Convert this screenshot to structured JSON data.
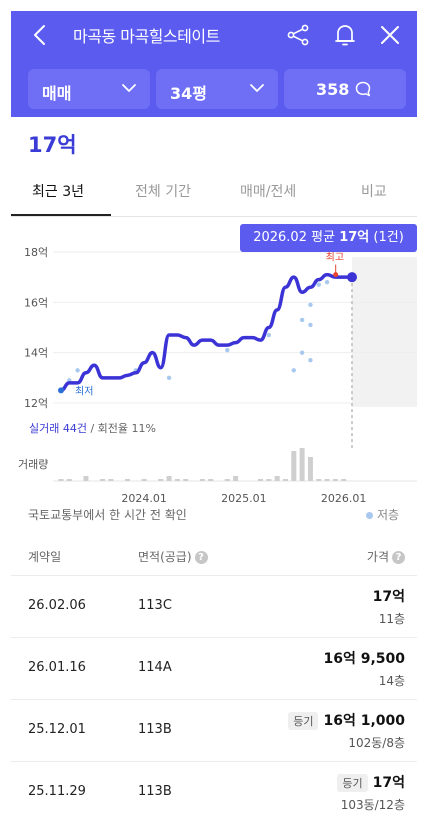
{
  "header": {
    "title": "마곡동 마곡힐스테이트",
    "trade_type": "매매",
    "size": "34평",
    "chat_count": "358"
  },
  "price_summary": "17억",
  "tabs": [
    {
      "label": "최근 3년",
      "active": true
    },
    {
      "label": "전체 기간",
      "active": false
    },
    {
      "label": "매매/전세",
      "active": false
    },
    {
      "label": "비교",
      "active": false
    }
  ],
  "tooltip": {
    "month": "2026.02",
    "label": "평균",
    "value": "17억",
    "count": "(1건)"
  },
  "chart_data": {
    "type": "line",
    "title": "",
    "y_ticks": [
      "18억",
      "16억",
      "14억",
      "12억"
    ],
    "ylim": [
      12,
      18
    ],
    "x_ticks": [
      "2024.01",
      "2025.01",
      "2026.01"
    ],
    "annotations": {
      "low": "최저",
      "high": "최고"
    },
    "volume_label": "거래량",
    "summary": {
      "deals_label": "실거래 44건",
      "turnover_label": "/ 회전율 11%"
    },
    "series": [
      {
        "name": "평균",
        "x": [
          "2023.03",
          "2023.04",
          "2023.05",
          "2023.06",
          "2023.07",
          "2023.08",
          "2023.09",
          "2023.10",
          "2023.11",
          "2023.12",
          "2024.01",
          "2024.02",
          "2024.03",
          "2024.04",
          "2024.05",
          "2024.06",
          "2024.07",
          "2024.08",
          "2024.09",
          "2024.10",
          "2024.11",
          "2024.12",
          "2025.01",
          "2025.02",
          "2025.03",
          "2025.04",
          "2025.05",
          "2025.06",
          "2025.07",
          "2025.08",
          "2025.09",
          "2025.10",
          "2025.11",
          "2025.12",
          "2026.01",
          "2026.02"
        ],
        "y": [
          12.5,
          12.8,
          12.8,
          13.2,
          13.5,
          13.0,
          13.0,
          13.0,
          13.1,
          13.2,
          13.6,
          14.0,
          13.4,
          14.7,
          14.7,
          14.6,
          14.3,
          14.5,
          14.5,
          14.3,
          14.3,
          14.4,
          14.6,
          14.6,
          14.5,
          15.0,
          15.7,
          16.6,
          17.0,
          16.4,
          16.6,
          16.9,
          17.1,
          17.0,
          17.0,
          17.0
        ]
      }
    ]
  },
  "footer_note": "국토교통부에서 한 시간 전 확인",
  "legend_low_floor": "저층",
  "table": {
    "headers": {
      "date": "계약일",
      "area": "면적(공급)",
      "price": "가격"
    },
    "rows": [
      {
        "date": "26.02.06",
        "area": "113C",
        "price": "17억",
        "floor": "11층",
        "badge": ""
      },
      {
        "date": "26.01.16",
        "area": "114A",
        "price": "16억 9,500",
        "floor": "14층",
        "badge": ""
      },
      {
        "date": "25.12.01",
        "area": "113B",
        "price": "16억 1,000",
        "floor": "102동/8층",
        "badge": "등기"
      },
      {
        "date": "25.11.29",
        "area": "113B",
        "price": "17억",
        "floor": "103동/12층",
        "badge": "등기"
      }
    ]
  },
  "colors": {
    "brand": "#5b5bf0",
    "line": "#3b33d6",
    "high_marker": "#e8442f",
    "low_marker": "#2b6fd6",
    "volume_bar": "#cfcfcf",
    "scatter": "#a9c8ee"
  },
  "icons": {
    "back": "chevron-left-icon",
    "share": "share-icon",
    "bell": "bell-icon",
    "close": "close-icon",
    "chat": "chat-bubble-icon"
  }
}
